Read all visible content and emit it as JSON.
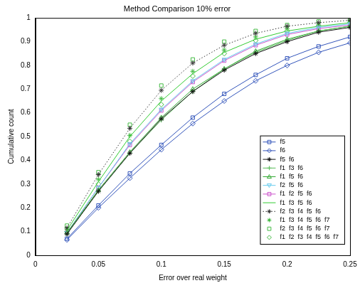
{
  "chart_data": {
    "type": "line",
    "title": "Method Comparison 10% error",
    "x_label": "Error over real weight",
    "y_label": "Cumulative count",
    "x": [
      0.025,
      0.05,
      0.075,
      0.1,
      0.125,
      0.15,
      0.175,
      0.2,
      0.225,
      0.25
    ],
    "xlim": [
      0,
      0.25
    ],
    "xticks": [
      0,
      0.05,
      0.1,
      0.15,
      0.2,
      0.25
    ],
    "ylim": [
      0,
      1
    ],
    "yticks": [
      0,
      0.1,
      0.2,
      0.3,
      0.4,
      0.5,
      0.6,
      0.7,
      0.8,
      0.9,
      1
    ],
    "grid": false,
    "legend": "lower right",
    "series": [
      {
        "name": "f5",
        "color": "#3355bb",
        "marker": "square",
        "line_style": "solid",
        "values": [
          0.07,
          0.21,
          0.345,
          0.465,
          0.58,
          0.68,
          0.76,
          0.83,
          0.88,
          0.92
        ]
      },
      {
        "name": "f6",
        "color": "#3355bb",
        "marker": "diamond",
        "line_style": "solid",
        "values": [
          0.065,
          0.2,
          0.325,
          0.445,
          0.555,
          0.65,
          0.735,
          0.8,
          0.855,
          0.895
        ]
      },
      {
        "name": "f5  f6",
        "color": "#111111",
        "marker": "star",
        "line_style": "solid",
        "values": [
          0.09,
          0.27,
          0.43,
          0.575,
          0.69,
          0.78,
          0.85,
          0.9,
          0.94,
          0.96
        ]
      },
      {
        "name": "f1  f3  f6",
        "color": "#55bb55",
        "marker": "cross",
        "line_style": "solid",
        "values": [
          0.09,
          0.27,
          0.43,
          0.57,
          0.69,
          0.785,
          0.855,
          0.905,
          0.945,
          0.965
        ]
      },
      {
        "name": "f1  f5  f6",
        "color": "#33aa33",
        "marker": "triangle",
        "line_style": "solid",
        "values": [
          0.095,
          0.275,
          0.435,
          0.58,
          0.7,
          0.785,
          0.86,
          0.91,
          0.945,
          0.965
        ]
      },
      {
        "name": "f2  f5  f6",
        "color": "#66ccee",
        "marker": "triangle_down",
        "line_style": "solid",
        "values": [
          0.095,
          0.285,
          0.47,
          0.615,
          0.735,
          0.825,
          0.89,
          0.935,
          0.96,
          0.975
        ]
      },
      {
        "name": "f1  f2  f5  f6",
        "color": "#cc55cc",
        "marker": "square",
        "line_style": "solid",
        "values": [
          0.095,
          0.285,
          0.465,
          0.61,
          0.73,
          0.82,
          0.885,
          0.93,
          0.955,
          0.97
        ]
      },
      {
        "name": "f1  f3  f5  f6",
        "color": "#33cc33",
        "marker": "none",
        "line_style": "solid",
        "values": [
          0.105,
          0.31,
          0.5,
          0.65,
          0.765,
          0.855,
          0.91,
          0.945,
          0.965,
          0.98
        ]
      },
      {
        "name": "f2  f3  f4  f5  f6",
        "color": "#333333",
        "marker": "star",
        "line_style": "dotted",
        "values": [
          0.115,
          0.34,
          0.535,
          0.695,
          0.81,
          0.885,
          0.935,
          0.965,
          0.98,
          0.99
        ]
      },
      {
        "name": "f1  f3  f4  f5  f6  f7",
        "color": "#44bb44",
        "marker": "star",
        "line_style": "none",
        "values": [
          0.11,
          0.32,
          0.505,
          0.66,
          0.775,
          0.865,
          0.92,
          0.955,
          0.97,
          0.985
        ]
      },
      {
        "name": "f2  f3  f4  f5  f6  f7",
        "color": "#44bb44",
        "marker": "square",
        "line_style": "none",
        "values": [
          0.125,
          0.35,
          0.55,
          0.715,
          0.825,
          0.9,
          0.945,
          0.97,
          0.985,
          0.99
        ]
      },
      {
        "name": "f1  f2  f3  f4  f5  f6  f7",
        "color": "#44bb44",
        "marker": "diamond",
        "line_style": "none",
        "values": [
          0.1,
          0.3,
          0.48,
          0.635,
          0.755,
          0.85,
          0.905,
          0.945,
          0.965,
          0.98
        ]
      }
    ]
  }
}
